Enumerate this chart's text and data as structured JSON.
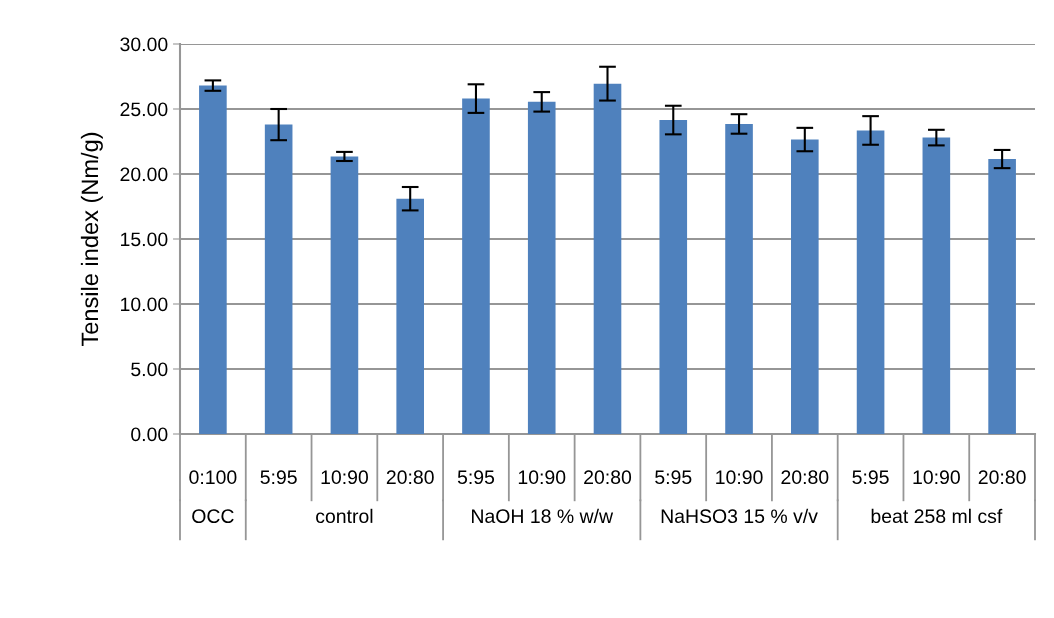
{
  "chart_data": {
    "type": "bar",
    "ylabel": "Tensile index (Nm/g)",
    "categories": [
      "0:100",
      "5:95",
      "10:90",
      "20:80",
      "5:95",
      "10:90",
      "20:80",
      "5:95",
      "10:90",
      "20:80",
      "5:95",
      "10:90",
      "20:80"
    ],
    "values": [
      26.8,
      23.8,
      21.35,
      18.1,
      25.8,
      25.55,
      26.95,
      24.15,
      23.85,
      22.65,
      23.35,
      22.8,
      21.15
    ],
    "errors": [
      0.4,
      1.2,
      0.35,
      0.9,
      1.1,
      0.75,
      1.3,
      1.1,
      0.75,
      0.9,
      1.1,
      0.6,
      0.7
    ],
    "color": "#4f81bd",
    "ylim": [
      0,
      30
    ],
    "yticks": [
      {
        "value": 0,
        "label": "0.00"
      },
      {
        "value": 5,
        "label": "5.00"
      },
      {
        "value": 10,
        "label": "10.00"
      },
      {
        "value": 15,
        "label": "15.00"
      },
      {
        "value": 20,
        "label": "20.00"
      },
      {
        "value": 25,
        "label": "25.00"
      },
      {
        "value": 30,
        "label": "30.00"
      }
    ],
    "grid": "y",
    "annotations": [
      "OCC",
      "control",
      "NaOH 18 % w/w",
      "NaHSO3 15 % v/v",
      "beat 258 ml csf"
    ]
  }
}
